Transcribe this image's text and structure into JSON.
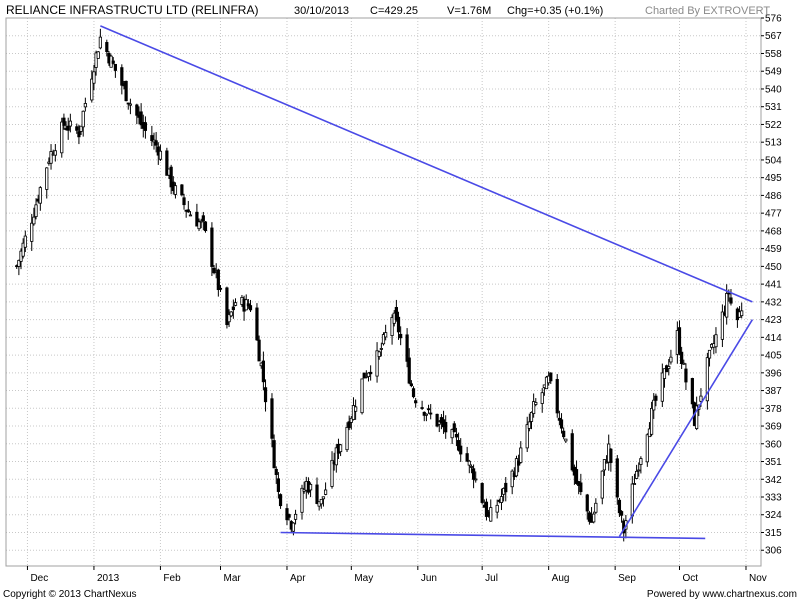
{
  "header": {
    "name": "RELIANCE INFRASTRUCTU LTD (RELINFRA)",
    "date": "30/10/2013",
    "close": "C=429.25",
    "volume": "V=1.76M",
    "change": "Chg=+0.35 (+0.1%)",
    "credit": "Charted By EXTROVERT"
  },
  "footer": {
    "copyright": "Copyright © 2013 ChartNexus",
    "powered": "Powered by www.chartnexus.com"
  },
  "colors": {
    "trendline": "#4a4ae6",
    "candle": "#000000",
    "grid": "#c8c8c8",
    "background": "#ffffff"
  },
  "chart_data": {
    "type": "candlestick",
    "y_range": [
      298,
      576
    ],
    "y_ticks": [
      306,
      315,
      324,
      333,
      342,
      351,
      360,
      369,
      378,
      387,
      396,
      405,
      414,
      423,
      432,
      441,
      450,
      459,
      468,
      477,
      486,
      495,
      504,
      513,
      522,
      531,
      540,
      549,
      558,
      567,
      576
    ],
    "x_ticks": [
      "Dec",
      "2013",
      "Feb",
      "Mar",
      "Apr",
      "May",
      "Jun",
      "Jul",
      "Aug",
      "Sep",
      "Oct",
      "Nov"
    ],
    "grid": true,
    "close_path": [
      {
        "date": "2012-11-26",
        "close": 450
      },
      {
        "date": "2012-12-04",
        "close": 478
      },
      {
        "date": "2012-12-11",
        "close": 505
      },
      {
        "date": "2012-12-18",
        "close": 522
      },
      {
        "date": "2012-12-25",
        "close": 518
      },
      {
        "date": "2012-12-31",
        "close": 548
      },
      {
        "date": "2013-01-04",
        "close": 566
      },
      {
        "date": "2013-01-10",
        "close": 552
      },
      {
        "date": "2013-01-17",
        "close": 535
      },
      {
        "date": "2013-01-24",
        "close": 520
      },
      {
        "date": "2013-01-31",
        "close": 510
      },
      {
        "date": "2013-02-07",
        "close": 490
      },
      {
        "date": "2013-02-14",
        "close": 478
      },
      {
        "date": "2013-02-21",
        "close": 470
      },
      {
        "date": "2013-02-28",
        "close": 440
      },
      {
        "date": "2013-03-04",
        "close": 420
      },
      {
        "date": "2013-03-08",
        "close": 432
      },
      {
        "date": "2013-03-15",
        "close": 430
      },
      {
        "date": "2013-03-20",
        "close": 400
      },
      {
        "date": "2013-03-25",
        "close": 360
      },
      {
        "date": "2013-03-28",
        "close": 335
      },
      {
        "date": "2013-04-03",
        "close": 320
      },
      {
        "date": "2013-04-10",
        "close": 340
      },
      {
        "date": "2013-04-17",
        "close": 330
      },
      {
        "date": "2013-04-24",
        "close": 355
      },
      {
        "date": "2013-05-01",
        "close": 375
      },
      {
        "date": "2013-05-07",
        "close": 395
      },
      {
        "date": "2013-05-14",
        "close": 405
      },
      {
        "date": "2013-05-20",
        "close": 425
      },
      {
        "date": "2013-05-23",
        "close": 418
      },
      {
        "date": "2013-05-30",
        "close": 385
      },
      {
        "date": "2013-06-06",
        "close": 375
      },
      {
        "date": "2013-06-13",
        "close": 368
      },
      {
        "date": "2013-06-20",
        "close": 360
      },
      {
        "date": "2013-06-27",
        "close": 345
      },
      {
        "date": "2013-07-04",
        "close": 322
      },
      {
        "date": "2013-07-11",
        "close": 335
      },
      {
        "date": "2013-07-18",
        "close": 352
      },
      {
        "date": "2013-07-25",
        "close": 378
      },
      {
        "date": "2013-08-01",
        "close": 392
      },
      {
        "date": "2013-08-07",
        "close": 370
      },
      {
        "date": "2013-08-14",
        "close": 340
      },
      {
        "date": "2013-08-21",
        "close": 320
      },
      {
        "date": "2013-08-26",
        "close": 345
      },
      {
        "date": "2013-08-29",
        "close": 358
      },
      {
        "date": "2013-09-02",
        "close": 330
      },
      {
        "date": "2013-09-05",
        "close": 316
      },
      {
        "date": "2013-09-10",
        "close": 342
      },
      {
        "date": "2013-09-16",
        "close": 368
      },
      {
        "date": "2013-09-23",
        "close": 392
      },
      {
        "date": "2013-09-30",
        "close": 415
      },
      {
        "date": "2013-10-04",
        "close": 392
      },
      {
        "date": "2013-10-08",
        "close": 372
      },
      {
        "date": "2013-10-14",
        "close": 400
      },
      {
        "date": "2013-10-21",
        "close": 425
      },
      {
        "date": "2013-10-24",
        "close": 437
      },
      {
        "date": "2013-10-27",
        "close": 420
      },
      {
        "date": "2013-10-30",
        "close": 429.25
      }
    ],
    "trendlines": [
      {
        "name": "down-resistance",
        "from": {
          "date": "2013-01-04",
          "price": 572
        },
        "to": {
          "date": "2013-11-04",
          "price": 432
        }
      },
      {
        "name": "flat-support",
        "from": {
          "date": "2013-03-29",
          "price": 315
        },
        "to": {
          "date": "2013-10-13",
          "price": 312
        }
      },
      {
        "name": "rising-support",
        "from": {
          "date": "2013-09-03",
          "price": 313
        },
        "to": {
          "date": "2013-11-04",
          "price": 423
        }
      }
    ]
  }
}
